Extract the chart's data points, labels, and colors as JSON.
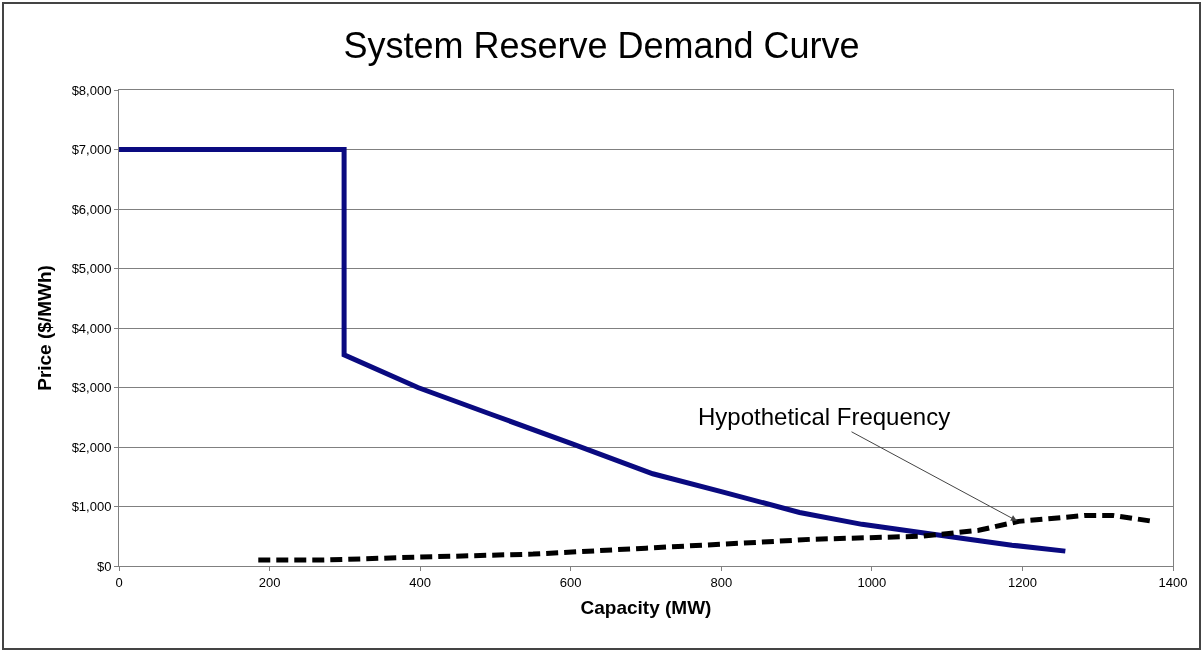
{
  "chart_data": {
    "type": "line",
    "title": "System Reserve Demand Curve",
    "xlabel": "Capacity (MW)",
    "ylabel": "Price ($/MWh)",
    "series": [
      {
        "color": "#0a0a80",
        "line_style": "solid",
        "x": [
          0,
          299,
          299,
          397,
          494,
          603,
          709,
          800,
          904,
          987,
          1100,
          1186,
          1257
        ],
        "values": [
          7000,
          7000,
          3550,
          3000,
          2550,
          2050,
          1550,
          1250,
          900,
          700,
          500,
          350,
          250
        ]
      },
      {
        "color": "#000000",
        "line_style": "dashed",
        "x": [
          185,
          269,
          400,
          550,
          700,
          851,
          921,
          1067,
          1142,
          1195,
          1284,
          1320,
          1374
        ],
        "values": [
          100,
          100,
          150,
          200,
          300,
          400,
          450,
          500,
          600,
          750,
          850,
          850,
          750
        ]
      }
    ],
    "xlim": [
      0,
      1400
    ],
    "xticks": [
      0,
      200,
      400,
      600,
      800,
      1000,
      1200,
      1400
    ],
    "ylim": [
      0,
      8000
    ],
    "yticks": [
      {
        "value": 0,
        "label": "$0"
      },
      {
        "value": 1000,
        "label": "$1,000"
      },
      {
        "value": 2000,
        "label": "$2,000"
      },
      {
        "value": 3000,
        "label": "$3,000"
      },
      {
        "value": 4000,
        "label": "$4,000"
      },
      {
        "value": 5000,
        "label": "$5,000"
      },
      {
        "value": 6000,
        "label": "$6,000"
      },
      {
        "value": 7000,
        "label": "$7,000"
      },
      {
        "value": 8000,
        "label": "$8,000"
      }
    ],
    "grid": "y",
    "marker": "none",
    "annotations": [
      {
        "text": "Hypothetical Frequency",
        "x": 1195,
        "y": 743
      }
    ]
  }
}
